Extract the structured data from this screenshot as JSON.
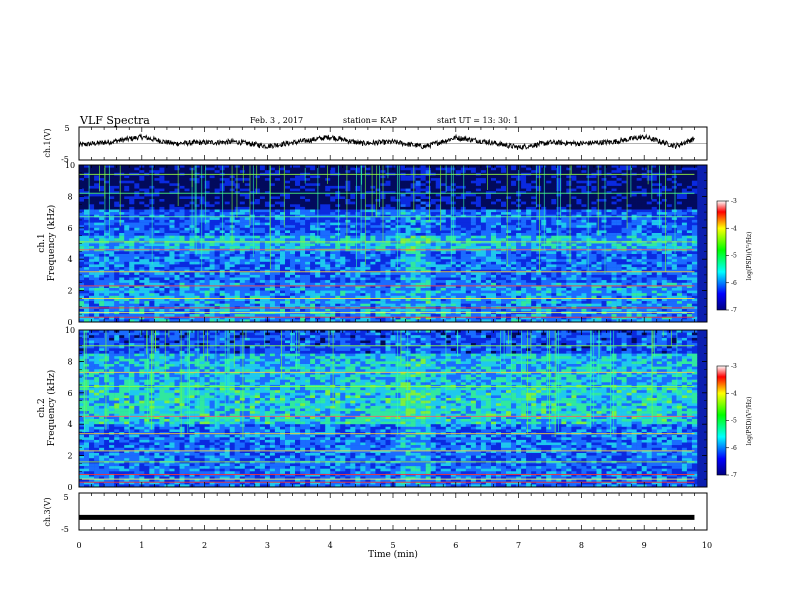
{
  "header": {
    "title": "VLF Spectra",
    "date": "Feb. 3  , 2017",
    "station": "station= KAP",
    "start_time": "start  UT =   13: 30: 1"
  },
  "chart_data": [
    {
      "type": "line",
      "ylabel": "ch.1(V)",
      "ylim": [
        -5,
        5
      ],
      "yticks": [
        "5",
        "-5"
      ],
      "xlim": [
        0,
        10
      ],
      "series": [
        {
          "x": [
            0,
            0.5,
            1.0,
            1.5,
            2.0,
            2.5,
            3.0,
            3.5,
            4.0,
            4.5,
            5.0,
            5.5,
            6.0,
            6.5,
            7.0,
            7.5,
            8.0,
            8.5,
            9.0,
            9.5,
            9.8
          ],
          "values": [
            -0.5,
            0.5,
            2.0,
            0.0,
            0.3,
            0.5,
            -0.8,
            0.5,
            2.0,
            0.0,
            0.5,
            -1.0,
            1.8,
            0.5,
            -1.2,
            0.3,
            0.0,
            0.5,
            2.0,
            -0.8,
            1.5
          ]
        }
      ]
    },
    {
      "type": "heatmap",
      "ylabel": "ch.1",
      "ylabel2": "Frequency  (kHz)",
      "yticks": [
        "0",
        "2",
        "4",
        "6",
        "8",
        "10"
      ],
      "ylim": [
        0,
        10
      ],
      "xlim": [
        0,
        10
      ],
      "colorbar": {
        "label": "log(PSD)(V²/Hz)",
        "ticks": [
          "-3",
          "-4",
          "-5",
          "-6",
          "-7"
        ],
        "range": [
          -7,
          -3
        ]
      }
    },
    {
      "type": "heatmap",
      "ylabel": "ch.2",
      "ylabel2": "Frequency  (kHz)",
      "yticks": [
        "0",
        "2",
        "4",
        "6",
        "8",
        "10"
      ],
      "ylim": [
        0,
        10
      ],
      "xlim": [
        0,
        10
      ],
      "colorbar": {
        "label": "log(PSD)(V²/Hz)",
        "ticks": [
          "-3",
          "-4",
          "-5",
          "-6",
          "-7"
        ],
        "range": [
          -7,
          -3
        ]
      }
    },
    {
      "type": "line",
      "ylabel": "ch.3(V)",
      "ylim": [
        -5,
        5
      ],
      "yticks": [
        "5",
        "-5"
      ],
      "xlim": [
        0,
        9.8
      ],
      "series": [
        {
          "x": [
            0,
            9.8
          ],
          "values": [
            -1.6,
            -1.6
          ]
        }
      ]
    }
  ],
  "xaxis": {
    "label": "Time  (min)",
    "ticks": [
      "0",
      "1",
      "2",
      "3",
      "4",
      "5",
      "6",
      "7",
      "8",
      "9",
      "10"
    ]
  }
}
